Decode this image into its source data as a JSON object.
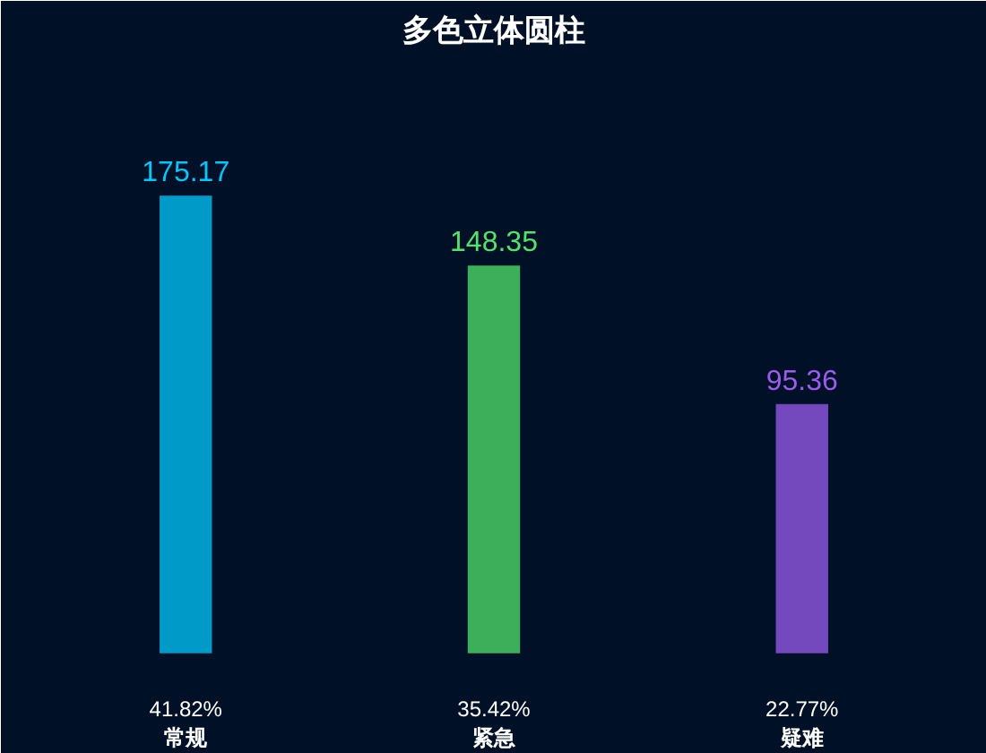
{
  "chart_data": {
    "type": "bar",
    "title": "多色立体圆柱",
    "categories": [
      "常规",
      "紧急",
      "疑难"
    ],
    "values": [
      175.17,
      148.35,
      95.36
    ],
    "colors": [
      "#00c8ff",
      "#52e36c",
      "#9b5cf0"
    ],
    "data_labels": true,
    "annotations": [
      "41.82%",
      "35.42%",
      "22.77%"
    ]
  }
}
